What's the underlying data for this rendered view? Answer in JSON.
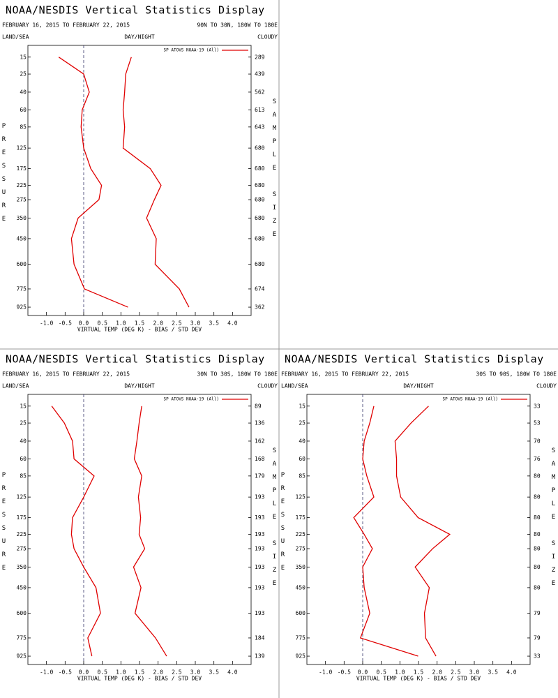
{
  "chart_data": [
    {
      "type": "line",
      "title": "NOAA/NESDIS Vertical Statistics Display",
      "date_range": "FEBRUARY 16, 2015 TO FEBRUARY 22, 2015",
      "region": "90N TO 30N, 180W TO 180E",
      "land_sea": "LAND/SEA",
      "day_night": "DAY/NIGHT",
      "cloudy": "CLOUDY",
      "ylabel": "PRESSURE",
      "y2label": "SAMPLE SIZE",
      "xlabel": "VIRTUAL TEMP (DEG K) - BIAS / STD DEV",
      "y": [
        15,
        25,
        40,
        60,
        85,
        125,
        175,
        225,
        275,
        350,
        450,
        600,
        775,
        925
      ],
      "sample_sizes": [
        289,
        439,
        562,
        613,
        643,
        680,
        680,
        680,
        680,
        680,
        680,
        680,
        674,
        362
      ],
      "series": [
        {
          "name": "SP ATOVS NOAA-19 (All)",
          "color": "#e00000",
          "values": [
            -0.67,
            0.0,
            0.15,
            -0.04,
            -0.07,
            0.0,
            0.19,
            0.48,
            0.41,
            -0.15,
            -0.33,
            -0.26,
            0.02,
            1.19
          ]
        },
        {
          "color": "#e00000",
          "values": [
            1.28,
            1.13,
            1.1,
            1.06,
            1.1,
            1.06,
            1.79,
            2.08,
            1.9,
            1.69,
            1.95,
            1.92,
            2.57,
            2.83
          ]
        }
      ],
      "xlim": [
        -1.5,
        4.5
      ],
      "xticks": [
        {
          "value": -1,
          "label": "-1.0"
        },
        -0.5,
        {
          "value": 0,
          "label": "0.0"
        },
        0.5,
        {
          "value": 1,
          "label": "1.0"
        },
        1.5,
        {
          "value": 2,
          "label": "2.0"
        },
        2.5,
        {
          "value": 3,
          "label": "3.0"
        },
        3.5,
        {
          "value": 4,
          "label": "4.0"
        }
      ],
      "ylim": [
        10,
        1000
      ],
      "y_inverted": true,
      "yticks": [
        15,
        25,
        40,
        60,
        85,
        125,
        175,
        225,
        275,
        350,
        450,
        600,
        775,
        925
      ]
    },
    {
      "type": "line",
      "title": "NOAA/NESDIS Vertical Statistics Display",
      "date_range": "FEBRUARY 16, 2015 TO FEBRUARY 22, 2015",
      "region": "30N TO 30S, 180W TO 180E",
      "land_sea": "LAND/SEA",
      "day_night": "DAY/NIGHT",
      "cloudy": "CLOUDY",
      "ylabel": "PRESSURE",
      "y2label": "SAMPLE SIZE",
      "xlabel": "VIRTUAL TEMP (DEG K) - BIAS / STD DEV",
      "y": [
        15,
        25,
        40,
        60,
        85,
        125,
        175,
        225,
        275,
        350,
        450,
        600,
        775,
        925
      ],
      "sample_sizes": [
        89,
        136,
        162,
        168,
        179,
        193,
        193,
        193,
        193,
        193,
        193,
        193,
        184,
        139
      ],
      "series": [
        {
          "name": "SP ATOVS NOAA-19 (All)",
          "color": "#e00000",
          "values": [
            -0.86,
            -0.52,
            -0.3,
            -0.26,
            0.28,
            0.0,
            -0.3,
            -0.33,
            -0.26,
            0.0,
            0.33,
            0.45,
            0.11,
            0.22
          ]
        },
        {
          "color": "#e00000",
          "values": [
            1.56,
            1.49,
            1.43,
            1.36,
            1.56,
            1.47,
            1.53,
            1.49,
            1.64,
            1.34,
            1.54,
            1.38,
            1.93,
            2.23
          ]
        }
      ],
      "xlim": [
        -1.5,
        4.5
      ],
      "xticks": [
        {
          "value": -1,
          "label": "-1.0"
        },
        -0.5,
        {
          "value": 0,
          "label": "0.0"
        },
        0.5,
        {
          "value": 1,
          "label": "1.0"
        },
        1.5,
        {
          "value": 2,
          "label": "2.0"
        },
        2.5,
        {
          "value": 3,
          "label": "3.0"
        },
        3.5,
        {
          "value": 4,
          "label": "4.0"
        }
      ],
      "ylim": [
        10,
        1000
      ],
      "y_inverted": true,
      "yticks": [
        15,
        25,
        40,
        60,
        85,
        125,
        175,
        225,
        275,
        350,
        450,
        600,
        775,
        925
      ]
    },
    {
      "type": "line",
      "title": "NOAA/NESDIS Vertical Statistics Display",
      "date_range": "FEBRUARY 16, 2015 TO FEBRUARY 22, 2015",
      "region": "30S TO 90S, 180W TO 180E",
      "land_sea": "LAND/SEA",
      "day_night": "DAY/NIGHT",
      "cloudy": "CLOUDY",
      "ylabel": "PRESSURE",
      "y2label": "SAMPLE SIZE",
      "xlabel": "VIRTUAL TEMP (DEG K) - BIAS / STD DEV",
      "y": [
        15,
        25,
        40,
        60,
        85,
        125,
        175,
        225,
        275,
        350,
        450,
        600,
        775,
        925
      ],
      "sample_sizes": [
        33,
        53,
        70,
        76,
        80,
        80,
        80,
        80,
        80,
        80,
        80,
        79,
        79,
        33
      ],
      "series": [
        {
          "name": "SP ATOVS NOAA-19 (All)",
          "color": "#e00000",
          "values": [
            0.3,
            0.19,
            0.04,
            0.0,
            0.11,
            0.3,
            -0.24,
            0.04,
            0.26,
            0.0,
            0.04,
            0.19,
            -0.06,
            1.49
          ]
        },
        {
          "color": "#e00000",
          "values": [
            1.77,
            1.3,
            0.87,
            0.91,
            0.91,
            1.02,
            1.49,
            2.34,
            1.88,
            1.41,
            1.79,
            1.66,
            1.69,
            1.97
          ]
        }
      ],
      "xlim": [
        -1.5,
        4.5
      ],
      "xticks": [
        {
          "value": -1,
          "label": "-1.0"
        },
        -0.5,
        {
          "value": 0,
          "label": "0.0"
        },
        0.5,
        {
          "value": 1,
          "label": "1.0"
        },
        1.5,
        {
          "value": 2,
          "label": "2.0"
        },
        2.5,
        {
          "value": 3,
          "label": "3.0"
        },
        3.5,
        {
          "value": 4,
          "label": "4.0"
        }
      ],
      "ylim": [
        10,
        1000
      ],
      "y_inverted": true,
      "yticks": [
        15,
        25,
        40,
        60,
        85,
        125,
        175,
        225,
        275,
        350,
        450,
        600,
        775,
        925
      ]
    }
  ]
}
